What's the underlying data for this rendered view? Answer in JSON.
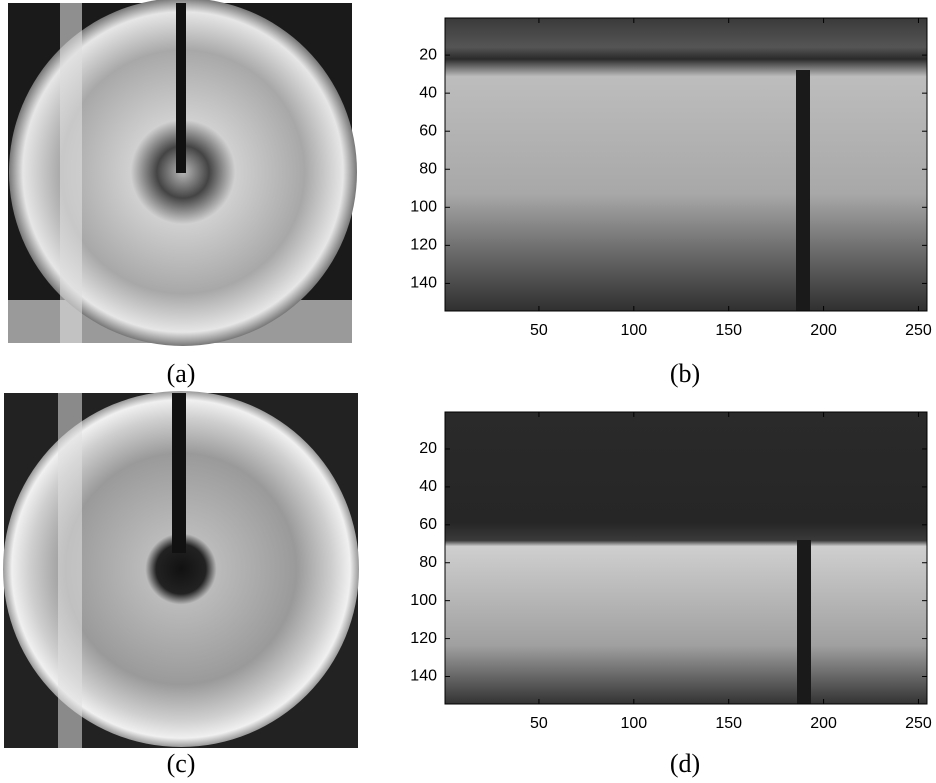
{
  "panels": [
    {
      "caption": "(a)"
    },
    {
      "caption": "(b)",
      "xlim": [
        0.5,
        254.5
      ],
      "ylim": [
        0.5,
        154.5
      ],
      "xticks": [
        50,
        100,
        150,
        200,
        250
      ],
      "yticks": [
        20,
        40,
        60,
        80,
        100,
        120,
        140
      ]
    },
    {
      "caption": "(c)"
    },
    {
      "caption": "(d)",
      "xlim": [
        0.5,
        254.5
      ],
      "ylim": [
        0.5,
        154.5
      ],
      "xticks": [
        50,
        100,
        150,
        200,
        250
      ],
      "yticks": [
        20,
        40,
        60,
        80,
        100,
        120,
        140
      ]
    }
  ]
}
